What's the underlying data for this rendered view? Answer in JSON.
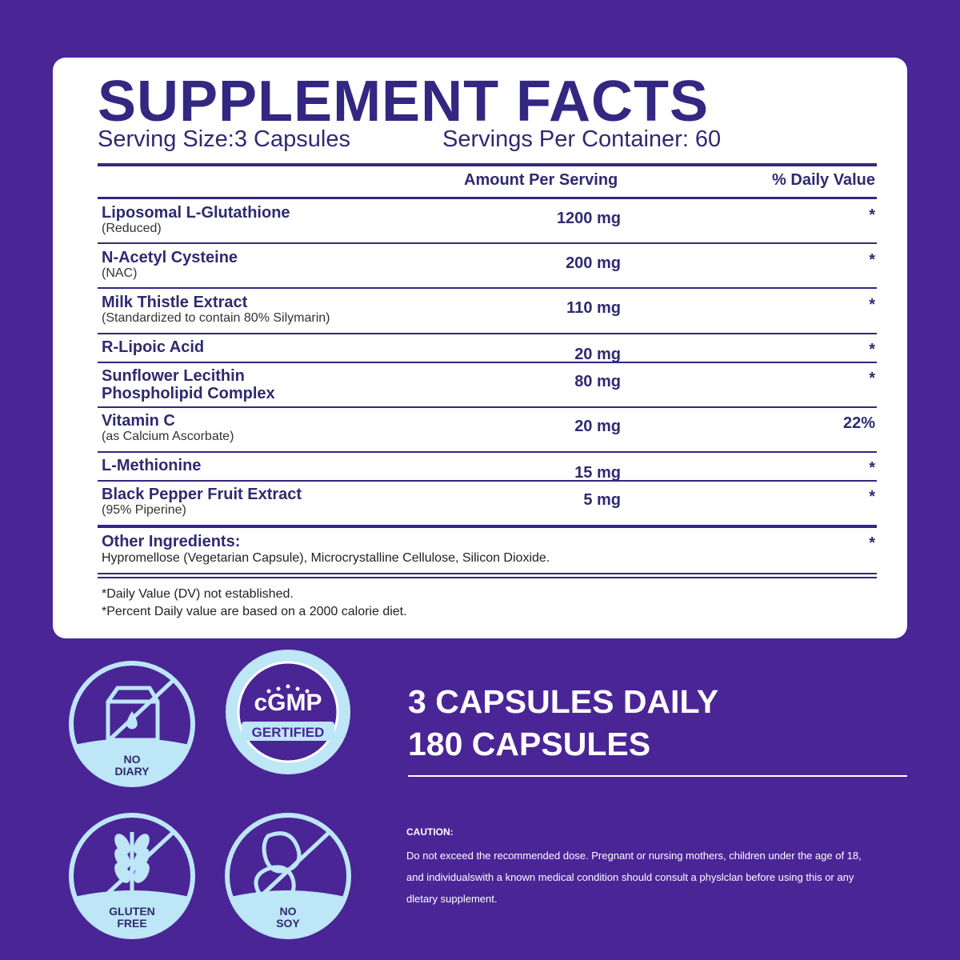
{
  "facts": {
    "title": "SUPPLEMENT FACTS",
    "serving_size": "Serving Size:3 Capsules",
    "servings_per_container": "Servings Per Container: 60",
    "header": {
      "amount": "Amount Per Serving",
      "dv": "% Daily Value"
    },
    "rows": [
      {
        "name": [
          "Liposomal L-Glutathione"
        ],
        "sub": "(Reduced)",
        "amount": "1200 mg",
        "dv": "*"
      },
      {
        "name": [
          "N-Acetyl Cysteine"
        ],
        "sub": "(NAC)",
        "amount": "200 mg",
        "dv": "*"
      },
      {
        "name": [
          "Milk Thistle Extract"
        ],
        "sub": "(Standardized to contain 80% Silymarin)",
        "amount": "110 mg",
        "dv": "*"
      },
      {
        "name": [
          "R-Lipoic Acid"
        ],
        "amount": "20 mg",
        "dv": "*"
      },
      {
        "name": [
          "Sunflower Lecithin",
          "Phospholipid Complex"
        ],
        "amount": "80 mg",
        "dv": "*"
      },
      {
        "name": [
          "Vitamin C"
        ],
        "sub": "(as Calcium Ascorbate)",
        "amount": "20 mg",
        "dv": "22%"
      },
      {
        "name": [
          "L-Methionine"
        ],
        "amount": "15 mg",
        "dv": "*"
      },
      {
        "name": [
          "Black Pepper Fruit Extract"
        ],
        "sub": "(95% Piperine)",
        "amount": "5 mg",
        "dv": "*"
      }
    ],
    "other": {
      "name": "Other Ingredients:",
      "text": "Hypromellose (Vegetarian Capsule), Microcrystalline Cellulose, Silicon Dioxide.",
      "dv": "*"
    },
    "footnotes": [
      "*Daily Value (DV) not established.",
      "*Percent Daily value are based on a 2000 calorie diet."
    ]
  },
  "badges": [
    {
      "lines": [
        "NO",
        "DIARY"
      ]
    },
    {
      "lines": [
        "cGMP",
        "GERTIFIED"
      ]
    },
    {
      "lines": [
        "GLUTEN",
        "FREE"
      ]
    },
    {
      "lines": [
        "NO",
        "SOY"
      ]
    }
  ],
  "daily": [
    "3 CAPSULES DAILY",
    "180 CAPSULES"
  ],
  "caution": {
    "title": "CAUTION:",
    "lines": [
      "Do not exceed the recommended dose. Pregnant or nursing mothers, children under the age of 18,",
      "and individualswith a known medical condition should consult a physlclan before using this or any",
      "dletary supplement."
    ]
  }
}
